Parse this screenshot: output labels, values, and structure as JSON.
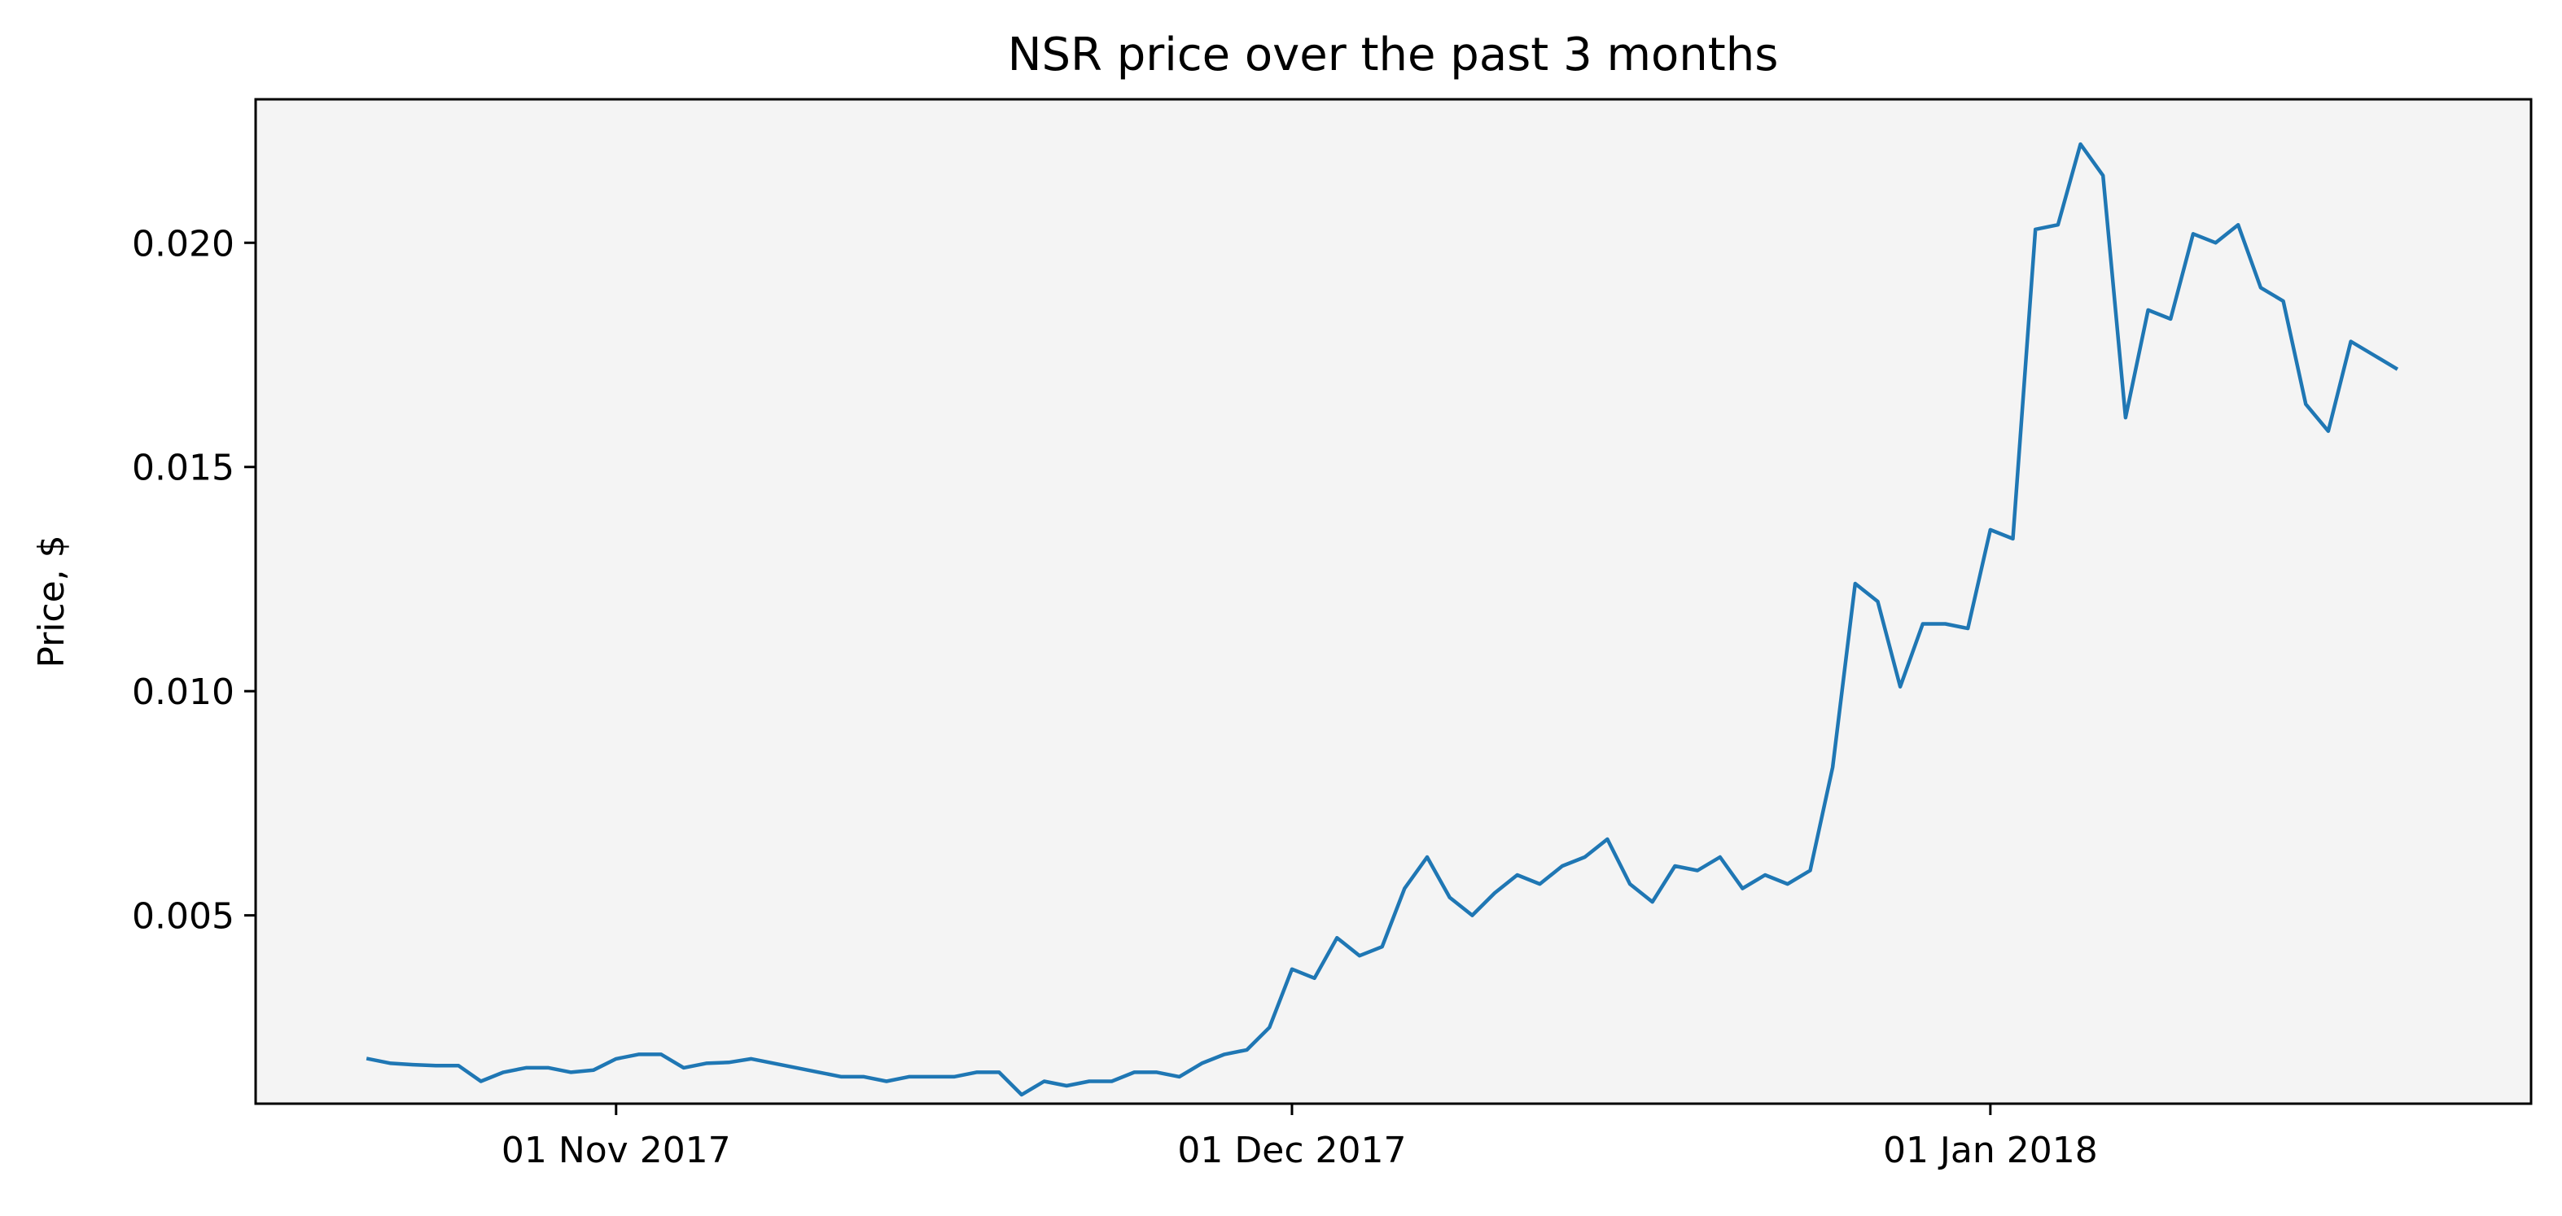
{
  "chart_data": {
    "type": "line",
    "title": "NSR price over the past 3 months",
    "xlabel": "",
    "ylabel": "Price, $",
    "x_start": "2017-10-21",
    "x_step_days": 1,
    "xlim": [
      "2017-10-16",
      "2018-01-25"
    ],
    "ylim": [
      0.0008,
      0.0232
    ],
    "grid": false,
    "legend": "none",
    "colors": {
      "line": "#1f77b4",
      "plot_bg": "#f4f4f4",
      "axes": "#000000"
    },
    "x_ticks": [
      {
        "date": "2017-11-01",
        "label": "01 Nov 2017"
      },
      {
        "date": "2017-12-01",
        "label": "01 Dec 2017"
      },
      {
        "date": "2018-01-01",
        "label": "01 Jan 2018"
      }
    ],
    "y_ticks": [
      {
        "value": 0.005,
        "label": "0.005"
      },
      {
        "value": 0.01,
        "label": "0.010"
      },
      {
        "value": 0.015,
        "label": "0.015"
      },
      {
        "value": 0.02,
        "label": "0.020"
      }
    ],
    "series": [
      {
        "values": [
          0.0018,
          0.0017,
          0.00167,
          0.00165,
          0.00165,
          0.0013,
          0.0015,
          0.0016,
          0.0016,
          0.0015,
          0.00155,
          0.0018,
          0.0019,
          0.0019,
          0.0016,
          0.0017,
          0.00172,
          0.0018,
          0.0017,
          0.0016,
          0.0015,
          0.0014,
          0.0014,
          0.0013,
          0.0014,
          0.0014,
          0.0014,
          0.0015,
          0.0015,
          0.001,
          0.0013,
          0.0012,
          0.0013,
          0.0013,
          0.0015,
          0.0015,
          0.0014,
          0.0017,
          0.0019,
          0.002,
          0.0025,
          0.0038,
          0.0036,
          0.0045,
          0.0041,
          0.0043,
          0.0056,
          0.0063,
          0.0054,
          0.005,
          0.0055,
          0.0059,
          0.0057,
          0.0061,
          0.0063,
          0.0067,
          0.0057,
          0.0053,
          0.0061,
          0.006,
          0.0063,
          0.0056,
          0.0059,
          0.0057,
          0.006,
          0.0083,
          0.0124,
          0.012,
          0.0101,
          0.0115,
          0.0115,
          0.0114,
          0.0136,
          0.0134,
          0.0203,
          0.0204,
          0.0222,
          0.0215,
          0.0161,
          0.0185,
          0.0183,
          0.0202,
          0.02,
          0.0204,
          0.019,
          0.0187,
          0.0164,
          0.0158,
          0.0178,
          0.0175,
          0.0172
        ]
      }
    ]
  }
}
